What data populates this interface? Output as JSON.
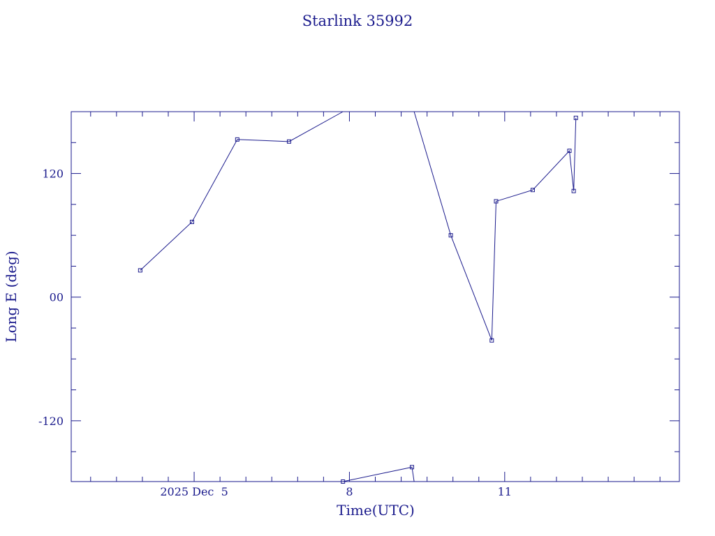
{
  "chart_data": {
    "type": "line",
    "title": "Starlink 35992",
    "xlabel": "Time(UTC)",
    "ylabel": "Long E (deg)",
    "xlim": [
      "2025-12-02T15:00",
      "2025-12-14T09:00"
    ],
    "ylim": [
      -179,
      180
    ],
    "x_ticks": [
      {
        "x": "2025-12-05T00:00",
        "label": "2025 Dec  5"
      },
      {
        "x": "2025-12-08T00:00",
        "label": "8"
      },
      {
        "x": "2025-12-11T00:00",
        "label": "11"
      }
    ],
    "y_ticks": [
      {
        "y": 120,
        "label": "120"
      },
      {
        "y": 0,
        "label": "00"
      },
      {
        "y": -120,
        "label": "-120"
      }
    ],
    "grid": false,
    "series": [
      {
        "color": "#1a1a8c",
        "marker": "square",
        "points": [
          {
            "x": "2025-12-03T23:00",
            "y": 26
          },
          {
            "x": "2025-12-04T23:00",
            "y": 73
          },
          {
            "x": "2025-12-05T20:00",
            "y": 153
          },
          {
            "x": "2025-12-06T20:00",
            "y": 151
          },
          {
            "x": "2025-12-07T21:00",
            "y": 180,
            "gap": true
          },
          {
            "x": "2025-12-07T21:00",
            "y": -179
          },
          {
            "x": "2025-12-09T05:00",
            "y": -165
          },
          {
            "x": "2025-12-09T06:00",
            "y": -179,
            "gap": true
          },
          {
            "x": "2025-12-09T06:00",
            "y": 180
          },
          {
            "x": "2025-12-09T23:00",
            "y": 60
          },
          {
            "x": "2025-12-10T18:00",
            "y": -42
          },
          {
            "x": "2025-12-10T20:00",
            "y": 93
          },
          {
            "x": "2025-12-11T13:00",
            "y": 104
          },
          {
            "x": "2025-12-12T06:00",
            "y": 142
          },
          {
            "x": "2025-12-12T08:00",
            "y": 103
          },
          {
            "x": "2025-12-12T09:00",
            "y": 174
          }
        ],
        "markers": [
          "2025-12-03T23:00",
          "2025-12-04T23:00",
          "2025-12-05T20:00",
          "2025-12-06T20:00",
          "2025-12-07T21:00",
          "2025-12-09T05:00",
          "2025-12-09T23:00",
          "2025-12-10T18:00",
          "2025-12-10T20:00",
          "2025-12-11T13:00",
          "2025-12-12T06:00",
          "2025-12-12T08:00",
          "2025-12-12T09:00"
        ]
      }
    ]
  }
}
